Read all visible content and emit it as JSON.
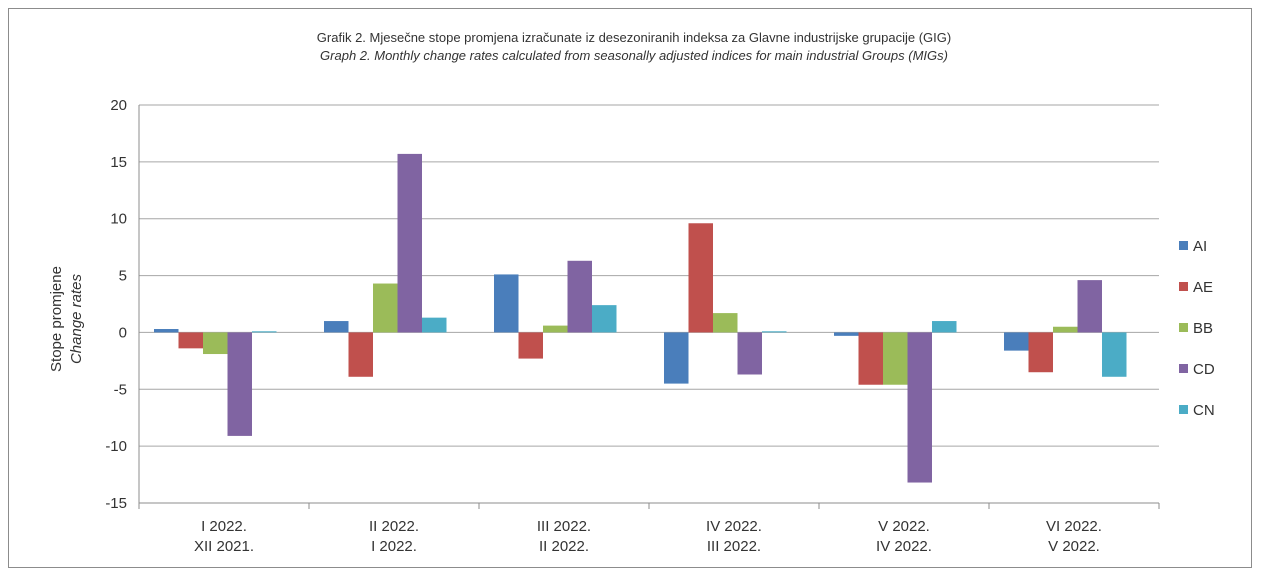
{
  "chart_data": {
    "type": "bar",
    "title": "Grafik 2. Mjesečne stope promjena izračunate iz desezoniranih indeksa za Glavne industrijske grupacije (GIG)",
    "subtitle": "Graph 2. Monthly change rates calculated from seasonally adjusted indices for main industrial Groups (MIGs)",
    "ylabel_line1": "Stope promjene",
    "ylabel_line2": "Change rates",
    "ylim": [
      -15,
      20
    ],
    "yticks": [
      "20",
      "15",
      "10",
      "5",
      "0",
      "-5",
      "-10",
      "-15"
    ],
    "categories": [
      {
        "line1": "I 2022.",
        "line2": "XII 2021."
      },
      {
        "line1": "II 2022.",
        "line2": "I 2022."
      },
      {
        "line1": "III 2022.",
        "line2": "II 2022."
      },
      {
        "line1": "IV 2022.",
        "line2": "III 2022."
      },
      {
        "line1": "V 2022.",
        "line2": "IV 2022."
      },
      {
        "line1": "VI 2022.",
        "line2": "V 2022."
      }
    ],
    "series": [
      {
        "name": "AI",
        "color": "#4a7ebb",
        "values": [
          0.3,
          1.0,
          5.1,
          -4.5,
          -0.3,
          -1.6
        ]
      },
      {
        "name": "AE",
        "color": "#c0504d",
        "values": [
          -1.4,
          -3.9,
          -2.3,
          9.6,
          -4.6,
          -3.5
        ]
      },
      {
        "name": "BB",
        "color": "#9bbb59",
        "values": [
          -1.9,
          4.3,
          0.6,
          1.7,
          -4.6,
          0.5
        ]
      },
      {
        "name": "CD",
        "color": "#8064a2",
        "values": [
          -9.1,
          15.7,
          6.3,
          -3.7,
          -13.2,
          4.6
        ]
      },
      {
        "name": "CN",
        "color": "#4bacc6",
        "values": [
          0.1,
          1.3,
          2.4,
          0.1,
          1.0,
          -3.9
        ]
      }
    ],
    "grid": true,
    "legend_position": "right"
  }
}
